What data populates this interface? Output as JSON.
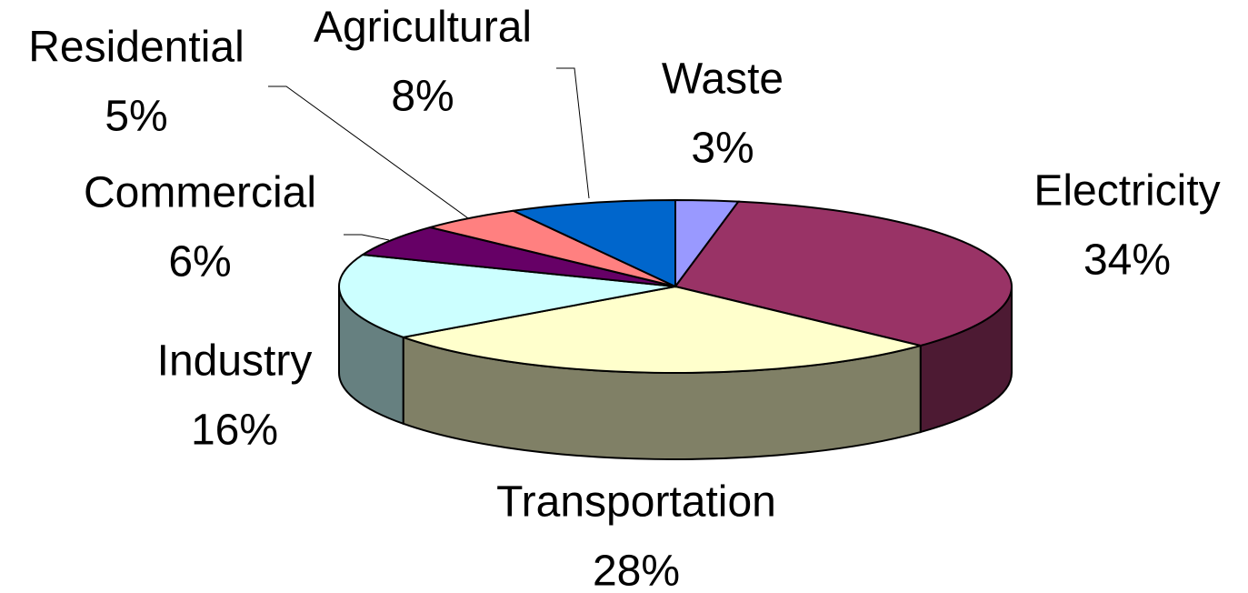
{
  "chart_data": {
    "type": "pie3d",
    "categories": [
      "Waste",
      "Electricity",
      "Transportation",
      "Industry",
      "Commercial",
      "Residential",
      "Agricultural"
    ],
    "values": [
      3,
      34,
      28,
      16,
      6,
      5,
      8
    ],
    "value_labels": [
      "3%",
      "34%",
      "28%",
      "16%",
      "6%",
      "5%",
      "8%"
    ],
    "colors": [
      "#9999ff",
      "#993366",
      "#ffffcc",
      "#ccffff",
      "#660066",
      "#ff8080",
      "#0066cc"
    ]
  }
}
